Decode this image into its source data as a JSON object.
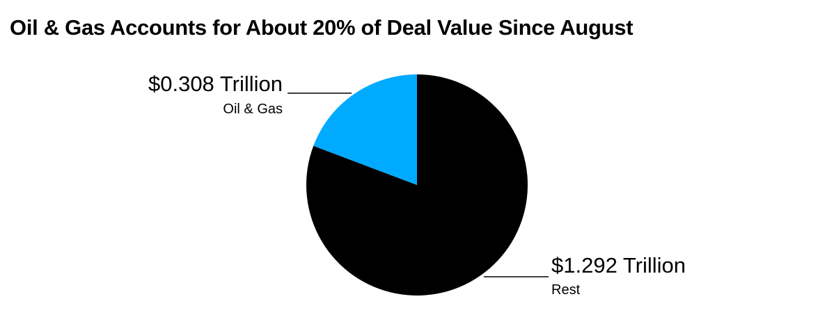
{
  "chart_data": {
    "type": "pie",
    "title": "Oil & Gas Accounts for About 20% of Deal Value Since August",
    "unit": "Trillion",
    "slices": [
      {
        "name": "Oil & Gas",
        "value": 0.308,
        "value_label": "$0.308 Trillion",
        "color": "#00aaff"
      },
      {
        "name": "Rest",
        "value": 1.292,
        "value_label": "$1.292 Trillion",
        "color": "#000000"
      }
    ]
  }
}
